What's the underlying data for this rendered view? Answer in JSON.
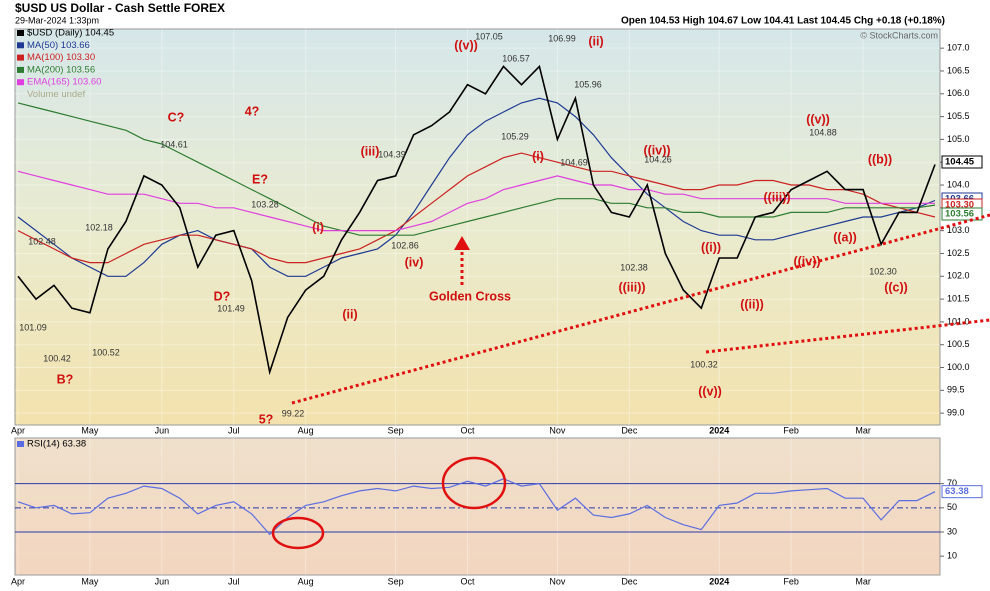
{
  "header": {
    "symbol": "$USD US Dollar - Cash Settle FOREX",
    "date": "29-Mar-2024 1:33pm",
    "quote": "Open 104.53 High 104.67 Low 104.41 Last 104.45 Chg +0.18 (+0.18%)",
    "credit": "© StockCharts.com"
  },
  "chart_data": [
    {
      "type": "line",
      "categories": [
        "Apr",
        null,
        null,
        null,
        "May",
        null,
        null,
        null,
        "Jun",
        null,
        null,
        null,
        "Jul",
        null,
        null,
        null,
        "Aug",
        null,
        null,
        null,
        null,
        "Sep",
        null,
        null,
        null,
        "Oct",
        null,
        null,
        null,
        null,
        "Nov",
        null,
        null,
        null,
        "Dec",
        null,
        null,
        null,
        null,
        "2024",
        null,
        null,
        null,
        "Feb",
        null,
        null,
        null,
        "Mar",
        null,
        null,
        null,
        null
      ],
      "series": [
        {
          "name": "$USD (Daily) 104.45",
          "color": "#000000",
          "end_label": "104.45",
          "values": [
            102.0,
            101.5,
            101.8,
            101.3,
            101.2,
            102.6,
            103.2,
            104.2,
            104.0,
            103.5,
            102.2,
            102.9,
            103.0,
            101.9,
            99.9,
            101.1,
            101.7,
            102.0,
            102.8,
            103.4,
            104.1,
            104.2,
            105.1,
            105.3,
            105.6,
            106.2,
            106.0,
            106.6,
            106.2,
            106.6,
            105.0,
            105.9,
            104.0,
            103.4,
            103.3,
            104.0,
            102.5,
            101.7,
            101.3,
            102.4,
            102.4,
            103.3,
            103.4,
            103.9,
            104.1,
            104.3,
            103.9,
            103.9,
            102.7,
            103.4,
            103.4,
            104.45
          ]
        },
        {
          "name": "MA(50) 103.66",
          "color": "#1f3a93",
          "end_label": "103.66",
          "values": [
            103.3,
            103.0,
            102.7,
            102.4,
            102.2,
            102.0,
            102.0,
            102.3,
            102.7,
            102.9,
            103.0,
            102.8,
            102.7,
            102.6,
            102.2,
            102.0,
            102.0,
            102.2,
            102.4,
            102.5,
            102.6,
            102.9,
            103.4,
            104.0,
            104.6,
            105.1,
            105.4,
            105.6,
            105.8,
            105.9,
            105.8,
            105.5,
            105.1,
            104.6,
            104.2,
            103.8,
            103.5,
            103.2,
            103.0,
            102.9,
            102.9,
            102.8,
            102.8,
            102.9,
            103.0,
            103.1,
            103.2,
            103.3,
            103.3,
            103.4,
            103.5,
            103.66
          ]
        },
        {
          "name": "MA(100) 103.30",
          "color": "#cc2222",
          "end_label": "103.30",
          "values": [
            103.0,
            102.8,
            102.6,
            102.4,
            102.3,
            102.3,
            102.5,
            102.7,
            102.8,
            102.9,
            102.9,
            102.8,
            102.7,
            102.6,
            102.4,
            102.3,
            102.3,
            102.4,
            102.5,
            102.6,
            102.8,
            103.0,
            103.3,
            103.6,
            103.9,
            104.2,
            104.4,
            104.6,
            104.7,
            104.6,
            104.5,
            104.4,
            104.3,
            104.3,
            104.2,
            104.1,
            104.0,
            103.9,
            103.9,
            104.0,
            104.0,
            104.1,
            104.1,
            104.0,
            104.0,
            103.9,
            103.9,
            103.8,
            103.6,
            103.5,
            103.4,
            103.3
          ]
        },
        {
          "name": "MA(200) 103.56",
          "color": "#2e7d32",
          "end_label": "103.56",
          "values": [
            105.8,
            105.7,
            105.6,
            105.5,
            105.4,
            105.3,
            105.2,
            105.0,
            104.9,
            104.7,
            104.5,
            104.3,
            104.1,
            103.9,
            103.7,
            103.5,
            103.3,
            103.1,
            103.0,
            102.9,
            102.9,
            102.9,
            102.9,
            103.0,
            103.1,
            103.2,
            103.3,
            103.4,
            103.5,
            103.6,
            103.7,
            103.7,
            103.7,
            103.6,
            103.6,
            103.5,
            103.5,
            103.4,
            103.4,
            103.3,
            103.3,
            103.3,
            103.3,
            103.4,
            103.4,
            103.4,
            103.5,
            103.5,
            103.5,
            103.5,
            103.5,
            103.56
          ]
        },
        {
          "name": "EMA(165) 103.60",
          "color": "#e040e0",
          "end_label": "103.60",
          "values": [
            104.3,
            104.2,
            104.1,
            104.0,
            103.9,
            103.8,
            103.8,
            103.8,
            103.7,
            103.6,
            103.6,
            103.5,
            103.5,
            103.4,
            103.3,
            103.2,
            103.1,
            103.0,
            103.0,
            103.0,
            103.0,
            103.0,
            103.1,
            103.2,
            103.4,
            103.6,
            103.7,
            103.9,
            104.0,
            104.1,
            104.2,
            104.1,
            104.0,
            104.0,
            103.9,
            103.9,
            103.8,
            103.8,
            103.7,
            103.7,
            103.7,
            103.7,
            103.7,
            103.7,
            103.7,
            103.7,
            103.6,
            103.6,
            103.6,
            103.6,
            103.6,
            103.6
          ]
        }
      ],
      "legend_extra": "Volume undef",
      "ylim": [
        98.74,
        107.42
      ],
      "yticks": [
        {
          "value": 99,
          "label": "99.0"
        },
        99.5,
        {
          "value": 100,
          "label": "100.0"
        },
        100.5,
        {
          "value": 101,
          "label": "101.0"
        },
        101.5,
        {
          "value": 102,
          "label": "102.0"
        },
        102.5,
        {
          "value": 103,
          "label": "103.0"
        },
        103.5,
        {
          "value": 104,
          "label": "104.0"
        },
        104.5,
        {
          "value": 105,
          "label": "105.0"
        },
        105.5,
        {
          "value": 106,
          "label": "106.0"
        },
        106.5,
        {
          "value": 107,
          "label": "107.0"
        }
      ],
      "wave_labels": [
        "C?",
        "4?",
        "E?",
        "D?",
        "B?",
        "5?",
        "(i)",
        "(ii)",
        "(iii)",
        "(iv)",
        "((v))",
        "(ii)",
        "(i)",
        "((iv))",
        "((iii))",
        "((v))",
        "((i))",
        "((ii))",
        "((iii))",
        "((iv))",
        "((v))",
        "((a))",
        "((b))",
        "((c))",
        "Golden Cross"
      ],
      "price_labels": [
        "102.48",
        "101.09",
        "100.42",
        "100.52",
        "102.18",
        "104.61",
        "103.28",
        "101.49",
        "99.22",
        "104.39",
        "102.86",
        "107.05",
        "106.57",
        "106.99",
        "105.96",
        "105.29",
        "104.69",
        "104.26",
        "102.38",
        "100.32",
        "104.88",
        "102.30"
      ]
    },
    {
      "type": "line",
      "categories": [
        "Apr",
        null,
        null,
        null,
        "May",
        null,
        null,
        null,
        "Jun",
        null,
        null,
        null,
        "Jul",
        null,
        null,
        null,
        "Aug",
        null,
        null,
        null,
        null,
        "Sep",
        null,
        null,
        null,
        "Oct",
        null,
        null,
        null,
        null,
        "Nov",
        null,
        null,
        null,
        "Dec",
        null,
        null,
        null,
        null,
        "2024",
        null,
        null,
        null,
        "Feb",
        null,
        null,
        null,
        "Mar",
        null,
        null,
        null,
        null
      ],
      "series": [
        {
          "name": "RSI(14) 63.38",
          "color": "#5b6ee1",
          "values": [
            55,
            50,
            52,
            45,
            46,
            58,
            62,
            68,
            66,
            58,
            45,
            52,
            55,
            45,
            28,
            42,
            52,
            55,
            60,
            64,
            66,
            64,
            68,
            66,
            67,
            72,
            68,
            74,
            68,
            70,
            48,
            58,
            44,
            42,
            45,
            52,
            42,
            36,
            32,
            52,
            54,
            62,
            62,
            64,
            65,
            66,
            58,
            58,
            40,
            56,
            56,
            63.38
          ]
        }
      ],
      "ylim": [
        -5.6,
        107.8
      ],
      "yticks": [
        10,
        30,
        50,
        70
      ],
      "bands": [
        30,
        70
      ],
      "midline": 50
    }
  ]
}
